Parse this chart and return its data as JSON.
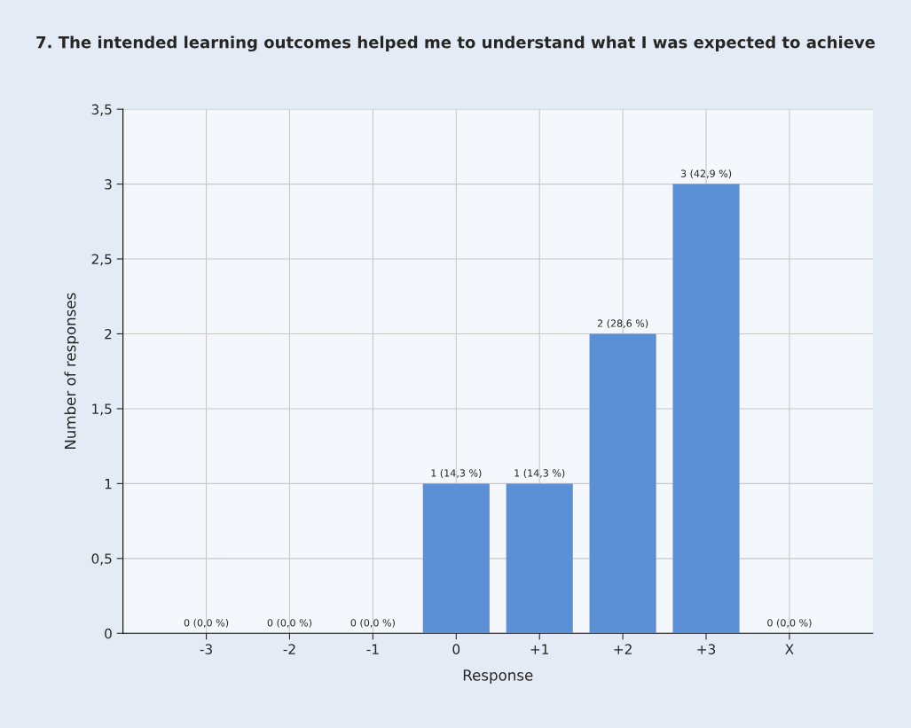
{
  "chart_data": {
    "type": "bar",
    "title": "7. The intended learning outcomes helped me to understand what I was expected to achieve",
    "xlabel": "Response",
    "ylabel": "Number of responses",
    "categories": [
      "-3",
      "-2",
      "-1",
      "0",
      "+1",
      "+2",
      "+3",
      "X"
    ],
    "values": [
      0,
      0,
      0,
      1,
      1,
      2,
      3,
      0
    ],
    "value_labels": [
      "0 (0,0 %)",
      "0 (0,0 %)",
      "0 (0,0 %)",
      "1 (14,3 %)",
      "1 (14,3 %)",
      "2 (28,6 %)",
      "3 (42,9 %)",
      "0 (0,0 %)"
    ],
    "color": "#5b8fd6",
    "ylim": [
      0,
      3.5
    ],
    "yticks": [
      0,
      {
        "value": 0.5,
        "label": "0,5"
      },
      1,
      {
        "value": 1.5,
        "label": "1,5"
      },
      2,
      {
        "value": 2.5,
        "label": "2,5"
      },
      3,
      {
        "value": 3.5,
        "label": "3,5"
      }
    ],
    "grid": true,
    "legend": false
  }
}
